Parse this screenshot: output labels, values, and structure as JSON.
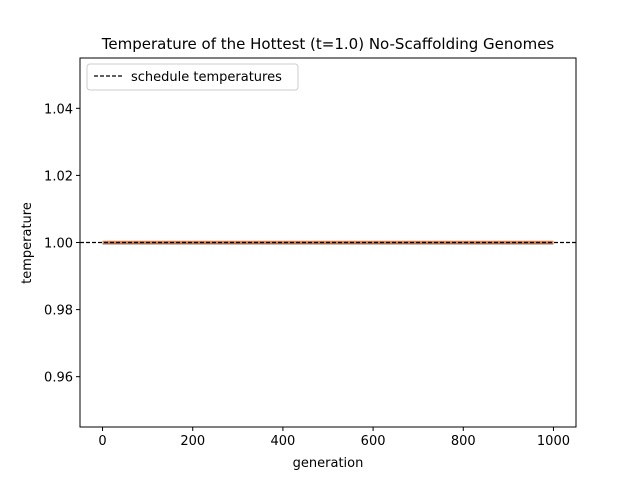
{
  "chart_data": {
    "type": "line",
    "title": "Temperature of the Hottest (t=1.0) No-Scaffolding Genomes",
    "xlabel": "generation",
    "ylabel": "temperature",
    "xlim": [
      -50,
      1050
    ],
    "ylim": [
      0.945,
      1.055
    ],
    "xticks": [
      0,
      200,
      400,
      600,
      800,
      1000
    ],
    "xtick_labels": [
      "0",
      "200",
      "400",
      "600",
      "800",
      "1000"
    ],
    "yticks": [
      0.96,
      0.98,
      1.0,
      1.02,
      1.04
    ],
    "ytick_labels": [
      "0.96",
      "0.98",
      "1.00",
      "1.02",
      "1.04"
    ],
    "grid": false,
    "legend_position": "top-left",
    "series": [
      {
        "name": "schedule temperatures",
        "style": "dashed",
        "color": "#000000",
        "x": [
          -50,
          1050
        ],
        "y": [
          1.0,
          1.0
        ]
      },
      {
        "name": "",
        "style": "band",
        "color": "#dd8452",
        "x": [
          0,
          1000
        ],
        "y": [
          1.0,
          1.0
        ]
      }
    ]
  }
}
